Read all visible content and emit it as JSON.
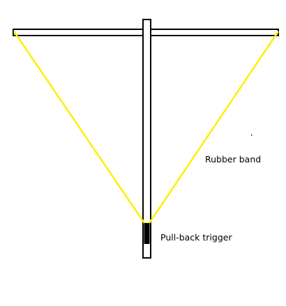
{
  "diagram": {
    "labels": {
      "rubber_band": "Rubber band",
      "trigger": "Pull-back trigger"
    },
    "colors": {
      "background": "#ffffff",
      "frame_stroke": "#000000",
      "frame_fill": "#ffffff",
      "band": "#ffee00",
      "trigger_fill": "#000000"
    }
  }
}
